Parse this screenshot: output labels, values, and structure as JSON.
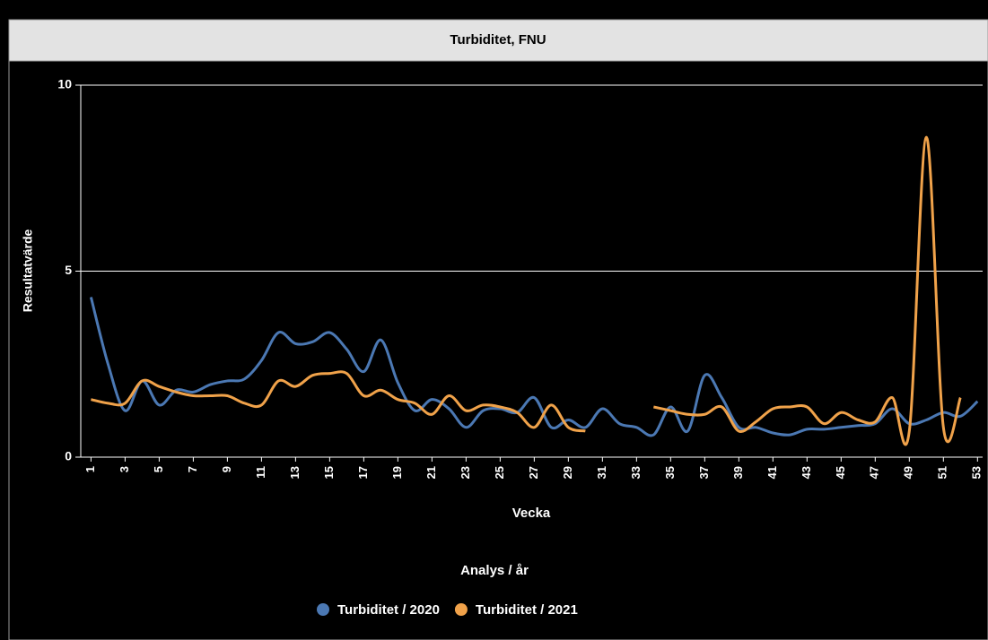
{
  "chart_data": {
    "type": "line",
    "title": "Turbiditet, FNU",
    "x_label": "Vecka",
    "y_label": "Resultatvärde",
    "legend_title": "Analys / år",
    "x": [
      1,
      2,
      3,
      4,
      5,
      6,
      7,
      8,
      9,
      10,
      11,
      12,
      13,
      14,
      15,
      16,
      17,
      18,
      19,
      20,
      21,
      22,
      23,
      24,
      25,
      26,
      27,
      28,
      29,
      30,
      31,
      32,
      33,
      34,
      35,
      36,
      37,
      38,
      39,
      40,
      41,
      42,
      43,
      44,
      45,
      46,
      47,
      48,
      49,
      50,
      51,
      52,
      53
    ],
    "xlim": [
      0.4,
      53.3
    ],
    "xticks": [
      1,
      3,
      5,
      7,
      9,
      11,
      13,
      15,
      17,
      19,
      21,
      23,
      25,
      27,
      29,
      31,
      33,
      35,
      37,
      39,
      41,
      43,
      45,
      47,
      49,
      51,
      53
    ],
    "ylim": [
      0,
      10
    ],
    "yticks": [
      0,
      5,
      10
    ],
    "grid": true,
    "legend": "bottom",
    "series": [
      {
        "name": "Turbiditet / 2020",
        "color": "#4b78b3",
        "values": [
          4.3,
          2.5,
          1.25,
          2.05,
          1.4,
          1.8,
          1.75,
          1.95,
          2.05,
          2.1,
          2.6,
          3.35,
          3.05,
          3.1,
          3.35,
          2.9,
          2.3,
          3.15,
          2.0,
          1.25,
          1.55,
          1.3,
          0.8,
          1.25,
          1.3,
          1.2,
          1.6,
          0.8,
          1.0,
          0.8,
          1.3,
          0.9,
          0.8,
          0.6,
          1.35,
          0.7,
          2.2,
          1.6,
          0.8,
          0.8,
          0.65,
          0.6,
          0.75,
          0.75,
          0.8,
          0.85,
          0.9,
          1.3,
          0.9,
          1.0,
          1.2,
          1.1,
          1.5
        ]
      },
      {
        "name": "Turbiditet / 2021",
        "color": "#f0a24a",
        "values": [
          1.55,
          1.45,
          1.45,
          2.05,
          1.9,
          1.75,
          1.65,
          1.65,
          1.65,
          1.45,
          1.4,
          2.05,
          1.9,
          2.2,
          2.25,
          2.25,
          1.65,
          1.8,
          1.55,
          1.45,
          1.15,
          1.65,
          1.25,
          1.4,
          1.35,
          1.2,
          0.8,
          1.4,
          0.8,
          0.7,
          null,
          null,
          null,
          1.35,
          1.25,
          1.15,
          1.15,
          1.35,
          0.7,
          0.95,
          1.3,
          1.35,
          1.35,
          0.9,
          1.2,
          1.0,
          0.95,
          1.6,
          0.7,
          8.6,
          0.8,
          1.6,
          null
        ]
      }
    ]
  }
}
